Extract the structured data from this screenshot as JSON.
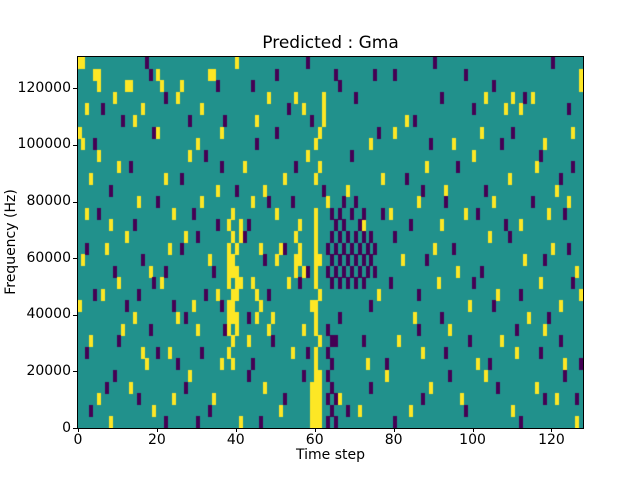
{
  "chart_data": {
    "type": "heatmap",
    "title": "Predicted : Gma",
    "xlabel": "Time step",
    "ylabel": "Frequency (Hz)",
    "x_range": [
      0,
      128
    ],
    "y_range": [
      0,
      131072
    ],
    "x_ticks": [
      0,
      20,
      40,
      60,
      80,
      100,
      120
    ],
    "y_ticks": [
      0,
      20000,
      40000,
      60000,
      80000,
      100000,
      120000
    ],
    "grid_cols": 128,
    "grid_rows": 32,
    "cell_height_hz": 4096,
    "legend": "none",
    "grid": false,
    "colors": {
      "background": "#21918c",
      "high": "#fde725",
      "low": "#440154"
    },
    "yellow_cells": [
      [
        8,
        0
      ],
      [
        41,
        0
      ],
      [
        59,
        0
      ],
      [
        60,
        0
      ],
      [
        61,
        0
      ],
      [
        126,
        0
      ],
      [
        19,
        1
      ],
      [
        51,
        1
      ],
      [
        59,
        1
      ],
      [
        60,
        1
      ],
      [
        61,
        1
      ],
      [
        71,
        1
      ],
      [
        84,
        1
      ],
      [
        110,
        1
      ],
      [
        5,
        2
      ],
      [
        24,
        2
      ],
      [
        34,
        2
      ],
      [
        59,
        2
      ],
      [
        60,
        2
      ],
      [
        61,
        2
      ],
      [
        66,
        2
      ],
      [
        97,
        2
      ],
      [
        121,
        2
      ],
      [
        13,
        3
      ],
      [
        47,
        3
      ],
      [
        59,
        3
      ],
      [
        60,
        3
      ],
      [
        61,
        3
      ],
      [
        89,
        3
      ],
      [
        116,
        3
      ],
      [
        28,
        4
      ],
      [
        60,
        4
      ],
      [
        61,
        4
      ],
      [
        78,
        4
      ],
      [
        103,
        4
      ],
      [
        17,
        5
      ],
      [
        36,
        5
      ],
      [
        39,
        5
      ],
      [
        60,
        5
      ],
      [
        73,
        5
      ],
      [
        101,
        5
      ],
      [
        123,
        5
      ],
      [
        16,
        6
      ],
      [
        23,
        6
      ],
      [
        38,
        6
      ],
      [
        54,
        6
      ],
      [
        60,
        6
      ],
      [
        87,
        6
      ],
      [
        111,
        6
      ],
      [
        3,
        7
      ],
      [
        39,
        7
      ],
      [
        43,
        7
      ],
      [
        61,
        7
      ],
      [
        81,
        7
      ],
      [
        107,
        7
      ],
      [
        11,
        8
      ],
      [
        30,
        8
      ],
      [
        38,
        8
      ],
      [
        40,
        8
      ],
      [
        48,
        8
      ],
      [
        57,
        8
      ],
      [
        60,
        8
      ],
      [
        94,
        8
      ],
      [
        118,
        8
      ],
      [
        14,
        9
      ],
      [
        25,
        9
      ],
      [
        38,
        9
      ],
      [
        39,
        9
      ],
      [
        40,
        9
      ],
      [
        45,
        9
      ],
      [
        49,
        9
      ],
      [
        60,
        9
      ],
      [
        85,
        9
      ],
      [
        114,
        9
      ],
      [
        0,
        10
      ],
      [
        29,
        10
      ],
      [
        38,
        10
      ],
      [
        39,
        10
      ],
      [
        46,
        10
      ],
      [
        59,
        10
      ],
      [
        60,
        10
      ],
      [
        99,
        10
      ],
      [
        122,
        10
      ],
      [
        6,
        11
      ],
      [
        35,
        11
      ],
      [
        39,
        11
      ],
      [
        40,
        11
      ],
      [
        45,
        11
      ],
      [
        61,
        11
      ],
      [
        76,
        11
      ],
      [
        106,
        11
      ],
      [
        127,
        11
      ],
      [
        10,
        12
      ],
      [
        21,
        12
      ],
      [
        38,
        12
      ],
      [
        40,
        12
      ],
      [
        41,
        12
      ],
      [
        44,
        12
      ],
      [
        53,
        12
      ],
      [
        60,
        12
      ],
      [
        91,
        12
      ],
      [
        117,
        12
      ],
      [
        18,
        13
      ],
      [
        38,
        13
      ],
      [
        39,
        13
      ],
      [
        40,
        13
      ],
      [
        55,
        13
      ],
      [
        57,
        13
      ],
      [
        60,
        13
      ],
      [
        96,
        13
      ],
      [
        126,
        13
      ],
      [
        1,
        14
      ],
      [
        33,
        14
      ],
      [
        38,
        14
      ],
      [
        39,
        14
      ],
      [
        50,
        14
      ],
      [
        55,
        14
      ],
      [
        56,
        14
      ],
      [
        60,
        14
      ],
      [
        61,
        14
      ],
      [
        82,
        14
      ],
      [
        113,
        14
      ],
      [
        7,
        15
      ],
      [
        23,
        15
      ],
      [
        38,
        15
      ],
      [
        40,
        15
      ],
      [
        46,
        15
      ],
      [
        51,
        15
      ],
      [
        56,
        15
      ],
      [
        60,
        15
      ],
      [
        90,
        15
      ],
      [
        120,
        15
      ],
      [
        12,
        16
      ],
      [
        27,
        16
      ],
      [
        39,
        16
      ],
      [
        41,
        16
      ],
      [
        55,
        16
      ],
      [
        60,
        16
      ],
      [
        104,
        16
      ],
      [
        8,
        17
      ],
      [
        38,
        17
      ],
      [
        41,
        17
      ],
      [
        56,
        17
      ],
      [
        60,
        17
      ],
      [
        72,
        17
      ],
      [
        92,
        17
      ],
      [
        112,
        17
      ],
      [
        2,
        18
      ],
      [
        24,
        18
      ],
      [
        39,
        18
      ],
      [
        50,
        18
      ],
      [
        60,
        18
      ],
      [
        79,
        18
      ],
      [
        98,
        18
      ],
      [
        119,
        18
      ],
      [
        15,
        19
      ],
      [
        31,
        19
      ],
      [
        44,
        19
      ],
      [
        63,
        19
      ],
      [
        86,
        19
      ],
      [
        105,
        19
      ],
      [
        124,
        19
      ],
      [
        35,
        20
      ],
      [
        47,
        20
      ],
      [
        68,
        20
      ],
      [
        93,
        20
      ],
      [
        121,
        20
      ],
      [
        3,
        21
      ],
      [
        22,
        21
      ],
      [
        52,
        21
      ],
      [
        60,
        21
      ],
      [
        77,
        21
      ],
      [
        109,
        21
      ],
      [
        10,
        22
      ],
      [
        42,
        22
      ],
      [
        61,
        22
      ],
      [
        88,
        22
      ],
      [
        116,
        22
      ],
      [
        5,
        23
      ],
      [
        28,
        23
      ],
      [
        58,
        23
      ],
      [
        100,
        23
      ],
      [
        1,
        24
      ],
      [
        30,
        24
      ],
      [
        60,
        24
      ],
      [
        74,
        24
      ],
      [
        95,
        24
      ],
      [
        118,
        24
      ],
      [
        0,
        25
      ],
      [
        20,
        25
      ],
      [
        36,
        25
      ],
      [
        61,
        25
      ],
      [
        80,
        25
      ],
      [
        102,
        25
      ],
      [
        125,
        25
      ],
      [
        14,
        26
      ],
      [
        45,
        26
      ],
      [
        62,
        26
      ],
      [
        83,
        26
      ],
      [
        2,
        27
      ],
      [
        16,
        27
      ],
      [
        31,
        27
      ],
      [
        57,
        27
      ],
      [
        62,
        27
      ],
      [
        108,
        27
      ],
      [
        112,
        27
      ],
      [
        9,
        28
      ],
      [
        25,
        28
      ],
      [
        48,
        28
      ],
      [
        55,
        28
      ],
      [
        62,
        28
      ],
      [
        103,
        28
      ],
      [
        110,
        28
      ],
      [
        115,
        28
      ],
      [
        5,
        29
      ],
      [
        12,
        29
      ],
      [
        13,
        29
      ],
      [
        21,
        29
      ],
      [
        26,
        29
      ],
      [
        127,
        29
      ],
      [
        4,
        30
      ],
      [
        5,
        30
      ],
      [
        20,
        30
      ],
      [
        33,
        30
      ],
      [
        34,
        30
      ],
      [
        127,
        30
      ],
      [
        0,
        31
      ],
      [
        1,
        31
      ],
      [
        40,
        31
      ]
    ],
    "purple_cells": [
      [
        64,
        12
      ],
      [
        66,
        12
      ],
      [
        68,
        12
      ],
      [
        70,
        12
      ],
      [
        72,
        12
      ],
      [
        63,
        13
      ],
      [
        65,
        13
      ],
      [
        67,
        13
      ],
      [
        69,
        13
      ],
      [
        71,
        13
      ],
      [
        73,
        13
      ],
      [
        75,
        13
      ],
      [
        64,
        14
      ],
      [
        66,
        14
      ],
      [
        68,
        14
      ],
      [
        70,
        14
      ],
      [
        72,
        14
      ],
      [
        74,
        14
      ],
      [
        63,
        15
      ],
      [
        65,
        15
      ],
      [
        67,
        15
      ],
      [
        69,
        15
      ],
      [
        71,
        15
      ],
      [
        73,
        15
      ],
      [
        75,
        15
      ],
      [
        64,
        16
      ],
      [
        66,
        16
      ],
      [
        68,
        16
      ],
      [
        70,
        16
      ],
      [
        72,
        16
      ],
      [
        74,
        16
      ],
      [
        65,
        17
      ],
      [
        67,
        17
      ],
      [
        71,
        17
      ],
      [
        64,
        18
      ],
      [
        66,
        18
      ],
      [
        69,
        18
      ],
      [
        72,
        18
      ],
      [
        67,
        19
      ],
      [
        70,
        19
      ],
      [
        63,
        0
      ],
      [
        65,
        0
      ],
      [
        64,
        1
      ],
      [
        63,
        2
      ],
      [
        65,
        2
      ],
      [
        64,
        3
      ],
      [
        63,
        4
      ],
      [
        64,
        5
      ],
      [
        63,
        6
      ],
      [
        64,
        7
      ],
      [
        65,
        7
      ],
      [
        63,
        8
      ],
      [
        22,
        0
      ],
      [
        30,
        0
      ],
      [
        46,
        0
      ],
      [
        80,
        0
      ],
      [
        112,
        0
      ],
      [
        3,
        1
      ],
      [
        33,
        1
      ],
      [
        68,
        1
      ],
      [
        98,
        1
      ],
      [
        15,
        2
      ],
      [
        52,
        2
      ],
      [
        87,
        2
      ],
      [
        118,
        2
      ],
      [
        126,
        2
      ],
      [
        7,
        3
      ],
      [
        27,
        3
      ],
      [
        74,
        3
      ],
      [
        106,
        3
      ],
      [
        9,
        4
      ],
      [
        43,
        4
      ],
      [
        57,
        4
      ],
      [
        94,
        4
      ],
      [
        123,
        4
      ],
      [
        25,
        5
      ],
      [
        44,
        5
      ],
      [
        78,
        5
      ],
      [
        104,
        5
      ],
      [
        127,
        5
      ],
      [
        2,
        6
      ],
      [
        20,
        6
      ],
      [
        31,
        6
      ],
      [
        58,
        6
      ],
      [
        93,
        6
      ],
      [
        117,
        6
      ],
      [
        10,
        7
      ],
      [
        49,
        7
      ],
      [
        72,
        7
      ],
      [
        99,
        7
      ],
      [
        122,
        7
      ],
      [
        18,
        8
      ],
      [
        37,
        8
      ],
      [
        86,
        8
      ],
      [
        111,
        8
      ],
      [
        27,
        9
      ],
      [
        43,
        9
      ],
      [
        66,
        9
      ],
      [
        92,
        9
      ],
      [
        119,
        9
      ],
      [
        12,
        10
      ],
      [
        24,
        10
      ],
      [
        36,
        10
      ],
      [
        74,
        10
      ],
      [
        105,
        10
      ],
      [
        4,
        11
      ],
      [
        15,
        11
      ],
      [
        32,
        11
      ],
      [
        48,
        11
      ],
      [
        86,
        11
      ],
      [
        112,
        11
      ],
      [
        19,
        12
      ],
      [
        56,
        12
      ],
      [
        79,
        12
      ],
      [
        100,
        12
      ],
      [
        125,
        12
      ],
      [
        9,
        13
      ],
      [
        22,
        13
      ],
      [
        34,
        13
      ],
      [
        58,
        13
      ],
      [
        102,
        13
      ],
      [
        16,
        14
      ],
      [
        47,
        14
      ],
      [
        88,
        14
      ],
      [
        118,
        14
      ],
      [
        2,
        15
      ],
      [
        26,
        15
      ],
      [
        52,
        15
      ],
      [
        95,
        15
      ],
      [
        124,
        15
      ],
      [
        30,
        16
      ],
      [
        42,
        16
      ],
      [
        80,
        16
      ],
      [
        109,
        16
      ],
      [
        14,
        17
      ],
      [
        35,
        17
      ],
      [
        43,
        17
      ],
      [
        84,
        17
      ],
      [
        108,
        17
      ],
      [
        5,
        18
      ],
      [
        29,
        18
      ],
      [
        77,
        18
      ],
      [
        101,
        18
      ],
      [
        123,
        18
      ],
      [
        20,
        19
      ],
      [
        48,
        19
      ],
      [
        54,
        19
      ],
      [
        93,
        19
      ],
      [
        115,
        19
      ],
      [
        8,
        20
      ],
      [
        40,
        20
      ],
      [
        62,
        20
      ],
      [
        87,
        20
      ],
      [
        103,
        20
      ],
      [
        26,
        21
      ],
      [
        83,
        21
      ],
      [
        122,
        21
      ],
      [
        13,
        22
      ],
      [
        36,
        22
      ],
      [
        55,
        22
      ],
      [
        96,
        22
      ],
      [
        125,
        22
      ],
      [
        32,
        23
      ],
      [
        69,
        23
      ],
      [
        117,
        23
      ],
      [
        4,
        24
      ],
      [
        45,
        24
      ],
      [
        89,
        24
      ],
      [
        107,
        24
      ],
      [
        19,
        25
      ],
      [
        50,
        25
      ],
      [
        76,
        25
      ],
      [
        110,
        25
      ],
      [
        11,
        26
      ],
      [
        28,
        26
      ],
      [
        37,
        26
      ],
      [
        59,
        26
      ],
      [
        85,
        26
      ],
      [
        6,
        27
      ],
      [
        53,
        27
      ],
      [
        100,
        27
      ],
      [
        124,
        27
      ],
      [
        22,
        28
      ],
      [
        70,
        28
      ],
      [
        92,
        28
      ],
      [
        113,
        28
      ],
      [
        35,
        29
      ],
      [
        44,
        29
      ],
      [
        66,
        29
      ],
      [
        105,
        29
      ],
      [
        18,
        30
      ],
      [
        50,
        30
      ],
      [
        65,
        30
      ],
      [
        75,
        30
      ],
      [
        80,
        30
      ],
      [
        98,
        30
      ],
      [
        17,
        31
      ],
      [
        58,
        31
      ],
      [
        90,
        31
      ],
      [
        120,
        31
      ]
    ]
  }
}
